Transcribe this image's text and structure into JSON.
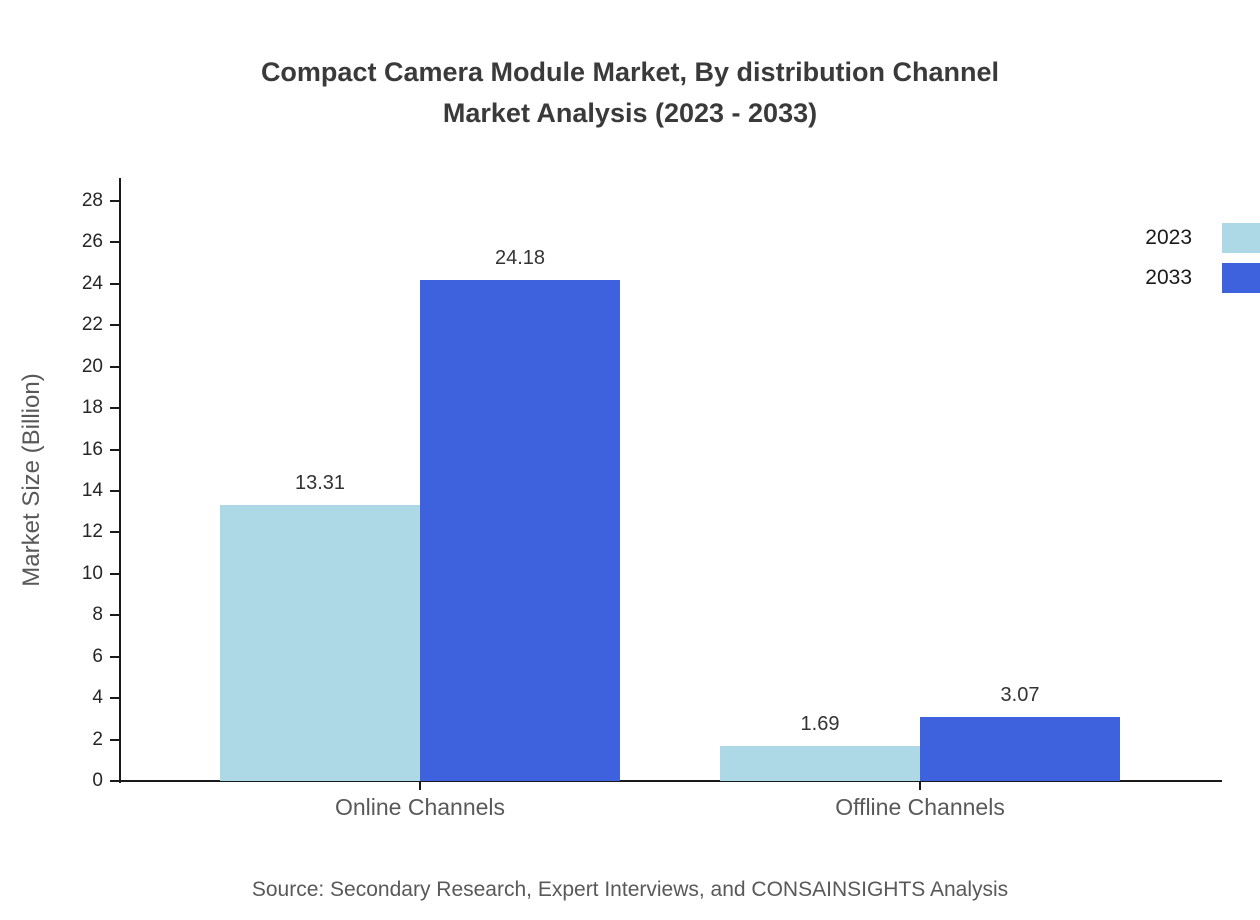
{
  "title": {
    "line1": "Compact Camera Module Market, By distribution Channel",
    "line2": "Market Analysis (2023 - 2033)"
  },
  "chart_data": {
    "type": "bar",
    "categories": [
      "Online Channels",
      "Offline Channels"
    ],
    "series": [
      {
        "name": "2023",
        "color": "#add8e6",
        "values": [
          13.31,
          1.69
        ]
      },
      {
        "name": "2033",
        "color": "#3e62de",
        "values": [
          24.18,
          3.07
        ]
      }
    ],
    "title": "Compact Camera Module Market, By distribution Channel Market Analysis (2023 - 2033)",
    "xlabel": "",
    "ylabel": "Market Size (Billion)",
    "ylim": [
      0,
      28
    ],
    "ytick_step": 2,
    "grid": false,
    "legend_position": "top-right",
    "value_labels": true
  },
  "source": "Source: Secondary Research, Expert Interviews, and CONSAINSIGHTS Analysis"
}
